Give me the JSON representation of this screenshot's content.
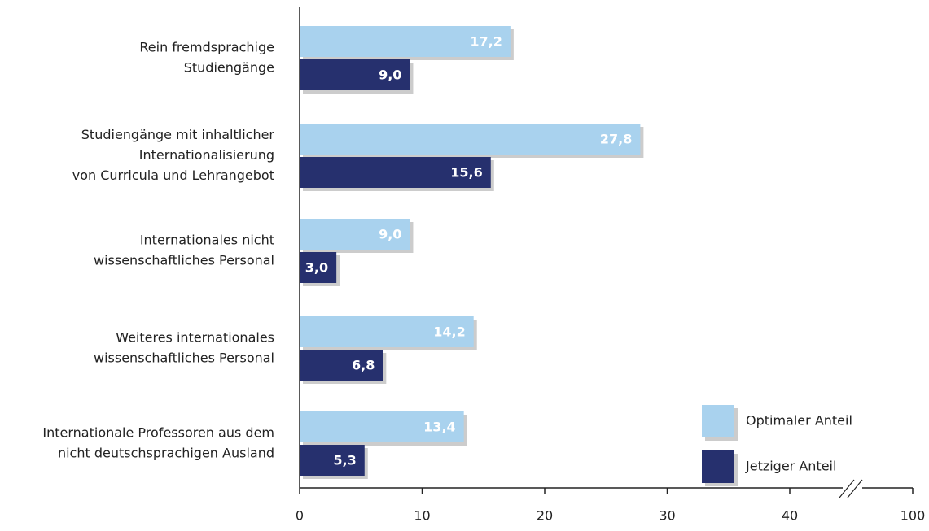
{
  "chart_data": {
    "type": "bar",
    "orientation": "horizontal",
    "categories": [
      [
        "Rein fremdsprachige",
        "Studiengänge"
      ],
      [
        "Studiengänge mit inhaltlicher",
        "Internationalisierung",
        "von Curricula und Lehrangebot"
      ],
      [
        "Internationales nicht",
        "wissenschaftliches Personal"
      ],
      [
        "Weiteres internationales",
        "wissenschaftliches Personal"
      ],
      [
        "Internationale Professoren aus dem",
        "nicht deutschsprachigen  Ausland"
      ]
    ],
    "series": [
      {
        "name": "Optimaler Anteil",
        "color": "#a9d2ee",
        "values": [
          17.2,
          27.8,
          9.0,
          14.2,
          13.4
        ],
        "value_labels": [
          "17,2",
          "27,8",
          "9,0",
          "14,2",
          "13,4"
        ]
      },
      {
        "name": "Jetziger Anteil",
        "color": "#26306e",
        "values": [
          9.0,
          15.6,
          3.0,
          6.8,
          5.3
        ],
        "value_labels": [
          "9,0",
          "15,6",
          "3,0",
          "6,8",
          "5,3"
        ]
      }
    ],
    "xlim": [
      0,
      100
    ],
    "xticks": [
      0,
      10,
      20,
      30,
      40,
      100
    ],
    "axis_break": [
      40,
      100
    ],
    "legend": "lower right"
  }
}
